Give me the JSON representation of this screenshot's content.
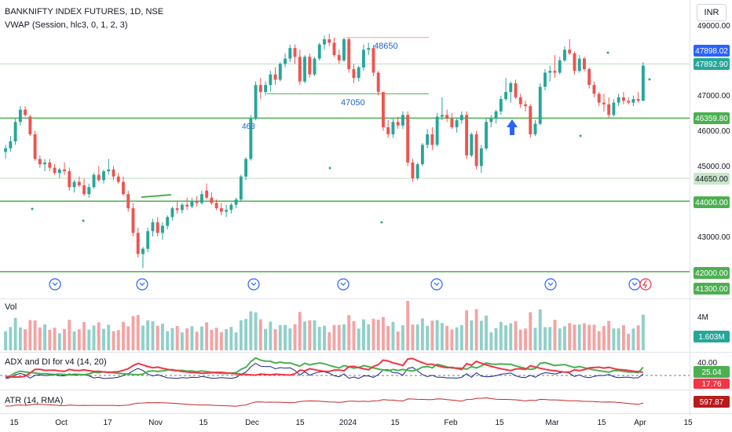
{
  "header": {
    "symbol": "BANKNIFTY INDEX FUTURES, 1D, NSE",
    "indicator": "VWAP (Session, hlc3, 0, 1, 2, 3)",
    "currency": "INR"
  },
  "colors": {
    "up": "#26a69a",
    "down": "#ef5350",
    "vol_up": "#8fd0c9",
    "vol_down": "#f4a3a3",
    "level": "#4caf50",
    "level_light": "#b9dfc0",
    "adx_green": "#4caf50",
    "adx_red": "#f23645",
    "adx_navy": "#1a237e",
    "atr": "#c62828",
    "blue_tag": "#2962ff",
    "text": "#131722"
  },
  "panes": {
    "volume_title": "Vol",
    "adx_title": "ADX and DI for v4 (14, 20)",
    "atr_title": "ATR (14, RMA)"
  },
  "axis": {
    "price_ticks": [
      "49000.00",
      "47000.00",
      "46000.00",
      "45000.00",
      "43000.00"
    ],
    "volume_tick": "4M",
    "adx_tick": "40.00",
    "x_labels": [
      "15",
      "Oct",
      "17",
      "Nov",
      "15",
      "Dec",
      "15",
      "2024",
      "15",
      "Feb",
      "15",
      "Mar",
      "15",
      "Apr",
      "15"
    ]
  },
  "badges": {
    "price_a": "47898.02",
    "price_b": "47892.90",
    "level_46359": "46359.80",
    "level_44650": "44650.00",
    "level_44000": "44000.00",
    "level_42000": "42000.00",
    "level_41300": "41300.00",
    "volume": "1.603M",
    "adx_green": "25.04",
    "adx_red": "17.76",
    "atr": "597.87"
  },
  "annotations": {
    "level_48650": "48650",
    "level_47050": "47050",
    "level_463": "463"
  },
  "chart_data": {
    "type": "candlestick",
    "title": "BANKNIFTY INDEX FUTURES, 1D, NSE",
    "price_range": [
      41300,
      49250
    ],
    "horizontal_levels": [
      48650,
      47898.02,
      47050,
      46359.8,
      44650,
      44000,
      42000
    ],
    "candles": [
      {
        "o": 45400,
        "h": 45600,
        "l": 45200,
        "c": 45500
      },
      {
        "o": 45500,
        "h": 45850,
        "l": 45400,
        "c": 45700
      },
      {
        "o": 45700,
        "h": 46350,
        "l": 45600,
        "c": 46250
      },
      {
        "o": 46250,
        "h": 46700,
        "l": 46150,
        "c": 46600
      },
      {
        "o": 46600,
        "h": 46700,
        "l": 46400,
        "c": 46450
      },
      {
        "o": 46400,
        "h": 46450,
        "l": 45850,
        "c": 45900
      },
      {
        "o": 45900,
        "h": 46000,
        "l": 45150,
        "c": 45200
      },
      {
        "o": 45200,
        "h": 45300,
        "l": 44950,
        "c": 45050
      },
      {
        "o": 45050,
        "h": 45200,
        "l": 44850,
        "c": 45100
      },
      {
        "o": 45100,
        "h": 45200,
        "l": 44850,
        "c": 44950
      },
      {
        "o": 44950,
        "h": 45050,
        "l": 44750,
        "c": 44800
      },
      {
        "o": 44800,
        "h": 44950,
        "l": 44650,
        "c": 44900
      },
      {
        "o": 44900,
        "h": 45100,
        "l": 44750,
        "c": 44850
      },
      {
        "o": 44850,
        "h": 44950,
        "l": 44300,
        "c": 44400
      },
      {
        "o": 44400,
        "h": 44600,
        "l": 44250,
        "c": 44550
      },
      {
        "o": 44550,
        "h": 44700,
        "l": 44400,
        "c": 44450
      },
      {
        "o": 44450,
        "h": 44650,
        "l": 44150,
        "c": 44200
      },
      {
        "o": 44200,
        "h": 44500,
        "l": 44100,
        "c": 44400
      },
      {
        "o": 44400,
        "h": 44800,
        "l": 44350,
        "c": 44750
      },
      {
        "o": 44750,
        "h": 45000,
        "l": 44550,
        "c": 44600
      },
      {
        "o": 44600,
        "h": 44900,
        "l": 44500,
        "c": 44850
      },
      {
        "o": 44850,
        "h": 45200,
        "l": 44750,
        "c": 44900
      },
      {
        "o": 44900,
        "h": 45000,
        "l": 44600,
        "c": 44700
      },
      {
        "o": 44700,
        "h": 44800,
        "l": 44500,
        "c": 44550
      },
      {
        "o": 44550,
        "h": 44700,
        "l": 44150,
        "c": 44200
      },
      {
        "o": 44200,
        "h": 44300,
        "l": 43700,
        "c": 43800
      },
      {
        "o": 43800,
        "h": 43950,
        "l": 43000,
        "c": 43100
      },
      {
        "o": 43100,
        "h": 43250,
        "l": 42400,
        "c": 42500
      },
      {
        "o": 42500,
        "h": 42700,
        "l": 42100,
        "c": 42650
      },
      {
        "o": 42650,
        "h": 43250,
        "l": 42550,
        "c": 43150
      },
      {
        "o": 43150,
        "h": 43500,
        "l": 43000,
        "c": 43400
      },
      {
        "o": 43400,
        "h": 43550,
        "l": 43000,
        "c": 43100
      },
      {
        "o": 43100,
        "h": 43400,
        "l": 42900,
        "c": 43300
      },
      {
        "o": 43300,
        "h": 43600,
        "l": 43200,
        "c": 43550
      },
      {
        "o": 43550,
        "h": 43850,
        "l": 43450,
        "c": 43800
      },
      {
        "o": 43800,
        "h": 44000,
        "l": 43650,
        "c": 43750
      },
      {
        "o": 43750,
        "h": 43950,
        "l": 43650,
        "c": 43900
      },
      {
        "o": 43900,
        "h": 44100,
        "l": 43750,
        "c": 43850
      },
      {
        "o": 43850,
        "h": 44100,
        "l": 43800,
        "c": 44000
      },
      {
        "o": 44000,
        "h": 44150,
        "l": 43850,
        "c": 43950
      },
      {
        "o": 43950,
        "h": 44300,
        "l": 43900,
        "c": 44200
      },
      {
        "o": 44300,
        "h": 44500,
        "l": 44050,
        "c": 44100
      },
      {
        "o": 44100,
        "h": 44250,
        "l": 43900,
        "c": 43950
      },
      {
        "o": 43950,
        "h": 44050,
        "l": 43750,
        "c": 43800
      },
      {
        "o": 43800,
        "h": 43950,
        "l": 43600,
        "c": 43700
      },
      {
        "o": 43700,
        "h": 43900,
        "l": 43550,
        "c": 43750
      },
      {
        "o": 43750,
        "h": 43950,
        "l": 43650,
        "c": 43900
      },
      {
        "o": 43900,
        "h": 44100,
        "l": 43800,
        "c": 44050
      },
      {
        "o": 44050,
        "h": 44750,
        "l": 44000,
        "c": 44700
      },
      {
        "o": 44700,
        "h": 45250,
        "l": 44600,
        "c": 45200
      },
      {
        "o": 45200,
        "h": 46450,
        "l": 45150,
        "c": 46350
      },
      {
        "o": 46350,
        "h": 47400,
        "l": 46300,
        "c": 47300
      },
      {
        "o": 47300,
        "h": 47500,
        "l": 46900,
        "c": 47100
      },
      {
        "o": 47100,
        "h": 47400,
        "l": 47000,
        "c": 47300
      },
      {
        "o": 47300,
        "h": 47700,
        "l": 47100,
        "c": 47600
      },
      {
        "o": 47600,
        "h": 47800,
        "l": 47300,
        "c": 47450
      },
      {
        "o": 47450,
        "h": 47950,
        "l": 47400,
        "c": 47900
      },
      {
        "o": 47900,
        "h": 48200,
        "l": 47800,
        "c": 48050
      },
      {
        "o": 48050,
        "h": 48450,
        "l": 47950,
        "c": 48350
      },
      {
        "o": 48350,
        "h": 48450,
        "l": 47900,
        "c": 48100
      },
      {
        "o": 48100,
        "h": 48300,
        "l": 47300,
        "c": 47400
      },
      {
        "o": 47400,
        "h": 48150,
        "l": 47350,
        "c": 48100
      },
      {
        "o": 48100,
        "h": 48200,
        "l": 47500,
        "c": 47600
      },
      {
        "o": 47600,
        "h": 48100,
        "l": 47550,
        "c": 48050
      },
      {
        "o": 48050,
        "h": 48500,
        "l": 48000,
        "c": 48450
      },
      {
        "o": 48450,
        "h": 48700,
        "l": 48300,
        "c": 48600
      },
      {
        "o": 48600,
        "h": 48750,
        "l": 48400,
        "c": 48500
      },
      {
        "o": 48500,
        "h": 48650,
        "l": 48100,
        "c": 48150
      },
      {
        "o": 48150,
        "h": 48300,
        "l": 47900,
        "c": 48000
      },
      {
        "o": 48000,
        "h": 48650,
        "l": 47950,
        "c": 48600
      },
      {
        "o": 48600,
        "h": 48650,
        "l": 47650,
        "c": 47750
      },
      {
        "o": 47750,
        "h": 47900,
        "l": 47350,
        "c": 47500
      },
      {
        "o": 47500,
        "h": 47850,
        "l": 47400,
        "c": 47800
      },
      {
        "o": 47800,
        "h": 48450,
        "l": 47700,
        "c": 48300
      },
      {
        "o": 48300,
        "h": 48500,
        "l": 48150,
        "c": 48350
      },
      {
        "o": 48350,
        "h": 48450,
        "l": 47550,
        "c": 47650
      },
      {
        "o": 47650,
        "h": 47700,
        "l": 47000,
        "c": 47100
      },
      {
        "o": 47100,
        "h": 47100,
        "l": 46000,
        "c": 46100
      },
      {
        "o": 46100,
        "h": 46300,
        "l": 45800,
        "c": 45900
      },
      {
        "o": 45900,
        "h": 46350,
        "l": 45800,
        "c": 46250
      },
      {
        "o": 46250,
        "h": 46400,
        "l": 46050,
        "c": 46150
      },
      {
        "o": 46150,
        "h": 46550,
        "l": 46050,
        "c": 46450
      },
      {
        "o": 46450,
        "h": 46550,
        "l": 45000,
        "c": 45100
      },
      {
        "o": 45100,
        "h": 45200,
        "l": 44550,
        "c": 44650
      },
      {
        "o": 44650,
        "h": 45100,
        "l": 44600,
        "c": 45050
      },
      {
        "o": 45050,
        "h": 45650,
        "l": 45000,
        "c": 45600
      },
      {
        "o": 45600,
        "h": 46050,
        "l": 45500,
        "c": 45900
      },
      {
        "o": 45900,
        "h": 46100,
        "l": 45450,
        "c": 45600
      },
      {
        "o": 45600,
        "h": 46500,
        "l": 45550,
        "c": 46400
      },
      {
        "o": 46400,
        "h": 46950,
        "l": 46300,
        "c": 46450
      },
      {
        "o": 46450,
        "h": 46600,
        "l": 46250,
        "c": 46350
      },
      {
        "o": 46350,
        "h": 46500,
        "l": 46050,
        "c": 46100
      },
      {
        "o": 46100,
        "h": 46350,
        "l": 45950,
        "c": 46300
      },
      {
        "o": 46300,
        "h": 46550,
        "l": 46200,
        "c": 46450
      },
      {
        "o": 46450,
        "h": 46550,
        "l": 45200,
        "c": 45300
      },
      {
        "o": 45300,
        "h": 45950,
        "l": 45250,
        "c": 45900
      },
      {
        "o": 45900,
        "h": 46000,
        "l": 44900,
        "c": 45000
      },
      {
        "o": 45000,
        "h": 45600,
        "l": 44800,
        "c": 45500
      },
      {
        "o": 45500,
        "h": 46350,
        "l": 45450,
        "c": 46250
      },
      {
        "o": 46250,
        "h": 46450,
        "l": 46100,
        "c": 46350
      },
      {
        "o": 46350,
        "h": 46600,
        "l": 46200,
        "c": 46550
      },
      {
        "o": 46550,
        "h": 47000,
        "l": 46450,
        "c": 46900
      },
      {
        "o": 46900,
        "h": 47500,
        "l": 46850,
        "c": 47100
      },
      {
        "o": 47100,
        "h": 47400,
        "l": 46800,
        "c": 47350
      },
      {
        "o": 47350,
        "h": 47450,
        "l": 46900,
        "c": 46950
      },
      {
        "o": 46950,
        "h": 47050,
        "l": 46650,
        "c": 46750
      },
      {
        "o": 46750,
        "h": 46850,
        "l": 46550,
        "c": 46700
      },
      {
        "o": 46700,
        "h": 46750,
        "l": 45800,
        "c": 45900
      },
      {
        "o": 45900,
        "h": 46300,
        "l": 45850,
        "c": 46200
      },
      {
        "o": 46200,
        "h": 47350,
        "l": 46150,
        "c": 47250
      },
      {
        "o": 47250,
        "h": 47750,
        "l": 47150,
        "c": 47650
      },
      {
        "o": 47650,
        "h": 47850,
        "l": 47400,
        "c": 47700
      },
      {
        "o": 47700,
        "h": 48150,
        "l": 47500,
        "c": 47650
      },
      {
        "o": 47650,
        "h": 48100,
        "l": 47600,
        "c": 48000
      },
      {
        "o": 48000,
        "h": 48400,
        "l": 47950,
        "c": 48300
      },
      {
        "o": 48300,
        "h": 48600,
        "l": 48150,
        "c": 48200
      },
      {
        "o": 48200,
        "h": 48250,
        "l": 47600,
        "c": 47700
      },
      {
        "o": 47700,
        "h": 48150,
        "l": 47650,
        "c": 48050
      },
      {
        "o": 48050,
        "h": 48100,
        "l": 47700,
        "c": 47750
      },
      {
        "o": 47750,
        "h": 47800,
        "l": 47200,
        "c": 47300
      },
      {
        "o": 47300,
        "h": 47400,
        "l": 46950,
        "c": 47050
      },
      {
        "o": 47050,
        "h": 47100,
        "l": 46700,
        "c": 46800
      },
      {
        "o": 46800,
        "h": 47050,
        "l": 46550,
        "c": 46750
      },
      {
        "o": 46750,
        "h": 46950,
        "l": 46350,
        "c": 46450
      },
      {
        "o": 46450,
        "h": 46900,
        "l": 46400,
        "c": 46800
      },
      {
        "o": 46800,
        "h": 47050,
        "l": 46700,
        "c": 46950
      },
      {
        "o": 46950,
        "h": 47100,
        "l": 46750,
        "c": 46850
      },
      {
        "o": 46850,
        "h": 46950,
        "l": 46750,
        "c": 46800
      },
      {
        "o": 46800,
        "h": 47000,
        "l": 46700,
        "c": 46900
      },
      {
        "o": 46900,
        "h": 47100,
        "l": 46800,
        "c": 46850
      },
      {
        "o": 46850,
        "h": 47950,
        "l": 46850,
        "c": 47850
      }
    ],
    "volume_unit": "M",
    "volume_last": 1.603,
    "adx": {
      "green_last": 25.04,
      "red_last": 17.76,
      "axis_tick": 40
    },
    "atr_last": 597.87,
    "x_tick_labels": [
      "15",
      "Oct",
      "17",
      "Nov",
      "15",
      "Dec",
      "15",
      "2024",
      "15",
      "Feb",
      "15",
      "Mar",
      "15",
      "Apr",
      "15"
    ]
  }
}
